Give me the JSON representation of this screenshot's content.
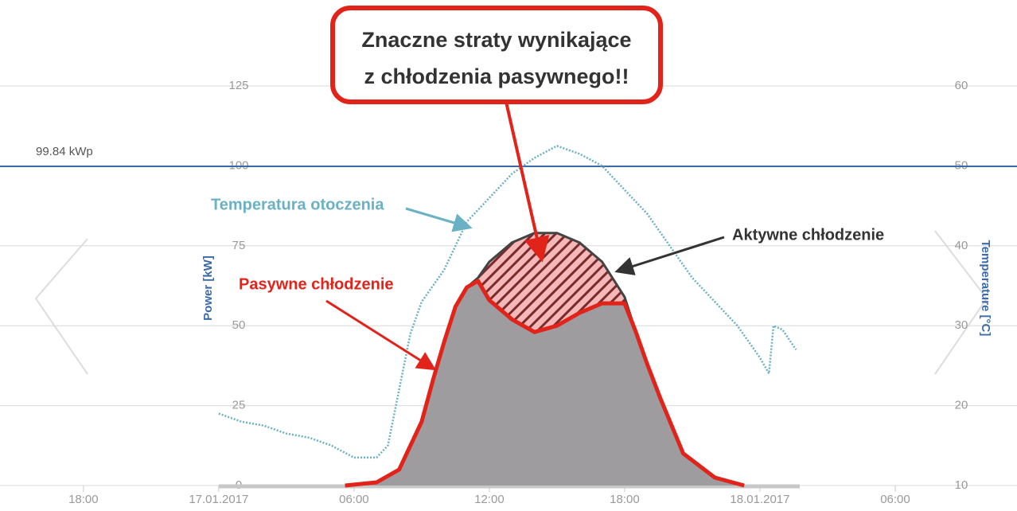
{
  "chart_data": {
    "type": "area",
    "callout": [
      "Znaczne straty wynikające",
      "z chłodzenia pasywnego!!"
    ],
    "ylabel": "Power [kW]",
    "y2label": "Temperature [°C]",
    "xlim": [
      -9.7,
      35.4
    ],
    "xticks": [
      {
        "value": -6,
        "label": "18:00"
      },
      {
        "value": 0,
        "label": "17.01.2017"
      },
      {
        "value": 6,
        "label": "06:00"
      },
      {
        "value": 12,
        "label": "12:00"
      },
      {
        "value": 18,
        "label": "18:00"
      },
      {
        "value": 24,
        "label": "18.01.2017"
      },
      {
        "value": 30,
        "label": "06:00"
      }
    ],
    "ylim": [
      0,
      125
    ],
    "yticks": [
      0,
      25,
      50,
      75,
      100,
      125
    ],
    "y2lim": [
      10,
      60
    ],
    "y2ticks": [
      10,
      20,
      30,
      40,
      50,
      60
    ],
    "reference_line": {
      "value": 99.84,
      "label": "99.84 kWp",
      "color": "#3a6aa8"
    },
    "x": [
      5.6,
      7,
      8,
      9,
      9.5,
      10,
      10.5,
      11,
      11.5,
      12,
      13,
      14,
      15,
      16,
      17,
      18,
      18.5,
      19,
      19.6,
      20.6,
      22,
      23.3
    ],
    "series": [
      {
        "name": "Aktywne chłodzenie",
        "color": "#444444",
        "values": [
          0,
          1,
          5,
          20,
          33,
          45,
          56,
          62,
          65,
          70,
          76,
          79,
          79,
          76,
          70,
          59,
          48,
          38,
          27,
          10,
          2.5,
          0
        ]
      },
      {
        "name": "Pasywne chłodzenie",
        "color": "#e2231a",
        "values": [
          0,
          1,
          5,
          20,
          33,
          45,
          56,
          62,
          64,
          58,
          52,
          48,
          50,
          54,
          57,
          57,
          48,
          38,
          27,
          10,
          2.5,
          0
        ]
      },
      {
        "name": "Temperatura otoczenia",
        "color": "#6bb1c4",
        "axis": "y2",
        "x": [
          0,
          1,
          2,
          3,
          4,
          5,
          6,
          7,
          7.5,
          8,
          8.5,
          9,
          10,
          10.5,
          11,
          12,
          13,
          13.5,
          14,
          15,
          16,
          17,
          18,
          19,
          20,
          21,
          22,
          23,
          24,
          24.4,
          24.6,
          25,
          25.6
        ],
        "values": [
          19,
          18,
          17.5,
          16.5,
          16,
          15,
          13.5,
          13.5,
          15,
          22,
          29,
          33,
          37,
          40,
          43,
          46,
          49,
          50,
          51,
          52.5,
          51.5,
          50,
          47,
          44,
          40,
          36,
          33,
          30,
          26,
          24,
          30,
          29.5,
          27
        ]
      }
    ]
  }
}
